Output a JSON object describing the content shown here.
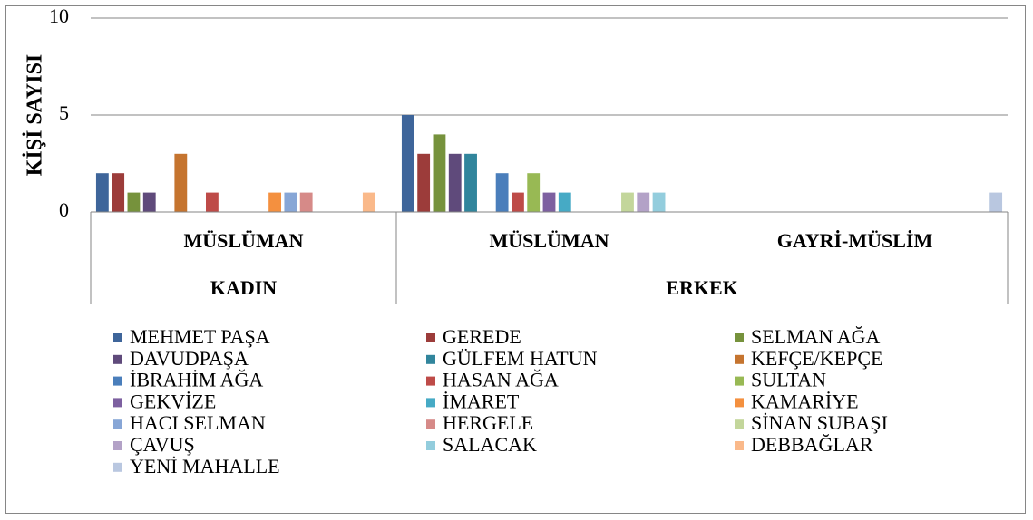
{
  "chart_data": {
    "type": "bar",
    "y_label": "KİŞİ SAYISI",
    "groups": [
      {
        "name": "KADIN",
        "categories": [
          "MÜSLÜMAN"
        ]
      },
      {
        "name": "ERKEK",
        "categories": [
          "MÜSLÜMAN",
          "GAYRİ-MÜSLİM"
        ]
      }
    ],
    "series": [
      {
        "name": "MEHMET PAŞA",
        "color": "#3e659a",
        "values": [
          2,
          5,
          0
        ]
      },
      {
        "name": "GEREDE",
        "color": "#9c3c3a",
        "values": [
          2,
          3,
          0
        ]
      },
      {
        "name": "SELMAN AĞA",
        "color": "#76923c",
        "values": [
          1,
          4,
          0
        ]
      },
      {
        "name": "DAVUDPAŞA",
        "color": "#5f4a7b",
        "values": [
          1,
          3,
          0
        ]
      },
      {
        "name": "GÜLFEM HATUN",
        "color": "#31859c",
        "values": [
          0,
          3,
          0
        ]
      },
      {
        "name": "KEFÇE/KEPÇE",
        "color": "#c5742f",
        "values": [
          3,
          0,
          0
        ]
      },
      {
        "name": "İBRAHİM AĞA",
        "color": "#4a7ebb",
        "values": [
          0,
          2,
          0
        ]
      },
      {
        "name": "HASAN AĞA",
        "color": "#be4b48",
        "values": [
          1,
          1,
          0
        ]
      },
      {
        "name": "SULTAN",
        "color": "#98b954",
        "values": [
          0,
          2,
          0
        ]
      },
      {
        "name": "GEKVİZE",
        "color": "#7d60a0",
        "values": [
          0,
          1,
          0
        ]
      },
      {
        "name": "İMARET",
        "color": "#46aac5",
        "values": [
          0,
          1,
          0
        ]
      },
      {
        "name": "KAMARİYE",
        "color": "#f4903f",
        "values": [
          1,
          0,
          0
        ]
      },
      {
        "name": "HACI SELMAN",
        "color": "#87a6d6",
        "values": [
          1,
          0,
          0
        ]
      },
      {
        "name": "HERGELE",
        "color": "#d68a88",
        "values": [
          1,
          0,
          0
        ]
      },
      {
        "name": "SİNAN SUBAŞI",
        "color": "#c3d69b",
        "values": [
          0,
          1,
          0
        ]
      },
      {
        "name": "ÇAVUŞ",
        "color": "#b3a2c7",
        "values": [
          0,
          1,
          0
        ]
      },
      {
        "name": "SALACAK",
        "color": "#93cddd",
        "values": [
          0,
          1,
          0
        ]
      },
      {
        "name": "DEBBAĞLAR",
        "color": "#fab98a",
        "values": [
          1,
          0,
          0
        ]
      },
      {
        "name": "YENİ MAHALLE",
        "color": "#b9c7e0",
        "values": [
          0,
          0,
          1
        ]
      }
    ],
    "ylim": [
      0,
      10
    ],
    "yticks": [
      0,
      5,
      10
    ],
    "grid": true
  }
}
